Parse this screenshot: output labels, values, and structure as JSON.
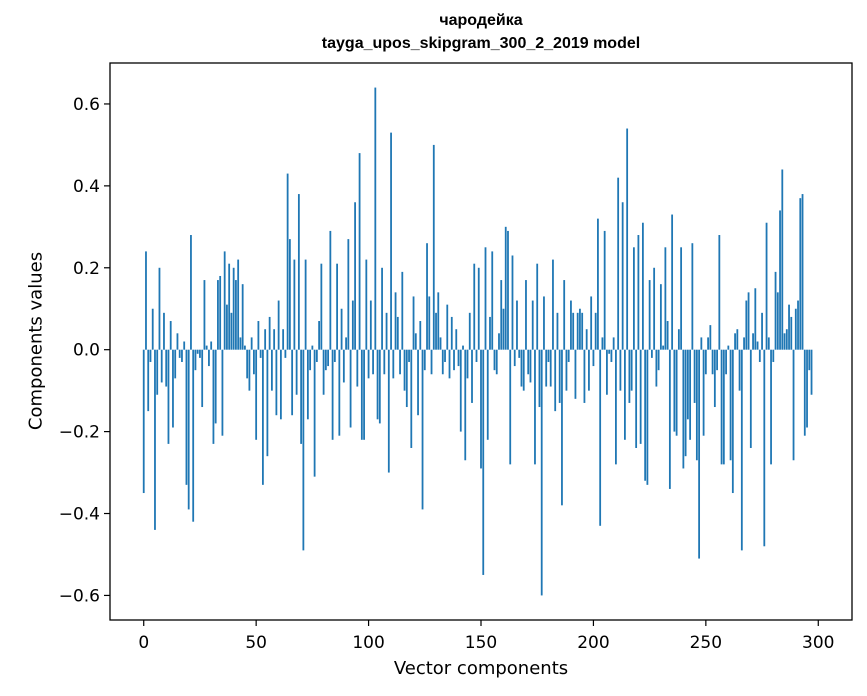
{
  "chart_data": {
    "type": "bar",
    "title": "чародейка",
    "subtitle": "tayga_upos_skipgram_300_2_2019 model",
    "xlabel": "Vector components",
    "ylabel": "Components values",
    "xlim": [
      -15,
      315
    ],
    "ylim": [
      -0.66,
      0.7
    ],
    "xticks": [
      0,
      50,
      100,
      150,
      200,
      250,
      300
    ],
    "xtick_labels": [
      "0",
      "50",
      "100",
      "150",
      "200",
      "250",
      "300"
    ],
    "yticks": [
      -0.6,
      -0.4,
      -0.2,
      0.0,
      0.2,
      0.4,
      0.6
    ],
    "ytick_labels": [
      "−0.6",
      "−0.4",
      "−0.2",
      "0.0",
      "0.2",
      "0.4",
      "0.6"
    ],
    "grid": false,
    "color": "#1f77b4",
    "values": [
      -0.35,
      0.24,
      -0.15,
      -0.03,
      0.1,
      -0.44,
      -0.11,
      0.2,
      -0.08,
      0.09,
      -0.09,
      -0.23,
      0.07,
      -0.19,
      -0.07,
      0.04,
      -0.02,
      -0.03,
      0.02,
      -0.33,
      -0.39,
      0.28,
      -0.42,
      -0.05,
      -0.01,
      -0.02,
      -0.14,
      0.17,
      0.01,
      -0.04,
      0.02,
      -0.23,
      -0.18,
      0.17,
      0.18,
      -0.21,
      0.24,
      0.11,
      0.21,
      0.09,
      0.2,
      0.17,
      0.22,
      0.03,
      0.16,
      0.01,
      -0.07,
      -0.1,
      0.03,
      -0.06,
      -0.22,
      0.07,
      -0.02,
      -0.33,
      0.05,
      -0.26,
      0.08,
      -0.1,
      0.05,
      -0.16,
      0.12,
      -0.17,
      0.05,
      -0.02,
      0.43,
      0.27,
      -0.16,
      0.22,
      -0.11,
      0.38,
      -0.23,
      -0.49,
      0.22,
      -0.17,
      -0.05,
      0.01,
      -0.31,
      -0.03,
      0.07,
      0.21,
      -0.11,
      -0.05,
      -0.04,
      0.29,
      -0.22,
      -0.03,
      0.21,
      -0.21,
      0.1,
      -0.08,
      0.03,
      0.27,
      -0.19,
      0.12,
      0.36,
      -0.09,
      0.48,
      -0.22,
      -0.22,
      0.22,
      -0.07,
      0.12,
      -0.06,
      0.64,
      -0.17,
      -0.18,
      0.2,
      -0.06,
      0.09,
      -0.3,
      0.53,
      -0.07,
      0.14,
      0.08,
      -0.06,
      0.19,
      -0.1,
      -0.14,
      -0.03,
      -0.24,
      0.13,
      0.04,
      -0.16,
      0.07,
      -0.39,
      -0.05,
      0.26,
      0.13,
      -0.06,
      0.5,
      0.09,
      0.14,
      0.03,
      -0.06,
      -0.03,
      0.11,
      -0.07,
      0.08,
      -0.05,
      0.05,
      -0.04,
      -0.2,
      0.01,
      -0.27,
      -0.07,
      0.09,
      -0.13,
      0.21,
      -0.03,
      0.2,
      -0.29,
      -0.55,
      0.25,
      -0.22,
      0.08,
      0.24,
      -0.05,
      -0.06,
      0.04,
      0.17,
      0.1,
      0.3,
      0.29,
      -0.28,
      0.23,
      -0.04,
      0.12,
      -0.02,
      -0.09,
      -0.1,
      0.17,
      -0.06,
      -0.08,
      0.12,
      -0.28,
      0.21,
      -0.14,
      -0.6,
      0.13,
      -0.09,
      -0.03,
      -0.09,
      0.22,
      -0.15,
      0.09,
      -0.13,
      -0.38,
      0.17,
      -0.1,
      -0.03,
      0.12,
      0.09,
      -0.12,
      0.09,
      0.1,
      0.09,
      -0.13,
      0.05,
      -0.1,
      0.13,
      -0.04,
      0.09,
      0.32,
      -0.43,
      0.03,
      0.29,
      -0.11,
      -0.01,
      -0.03,
      0.03,
      -0.28,
      0.42,
      -0.1,
      0.36,
      -0.22,
      0.54,
      -0.13,
      -0.1,
      0.25,
      -0.24,
      0.28,
      -0.23,
      0.31,
      -0.32,
      -0.33,
      0.17,
      -0.02,
      0.2,
      -0.09,
      -0.05,
      0.16,
      0.01,
      0.25,
      0.07,
      -0.34,
      0.33,
      -0.2,
      -0.21,
      0.05,
      0.25,
      -0.29,
      -0.26,
      -0.17,
      -0.22,
      0.26,
      -0.13,
      -0.27,
      -0.51,
      0.03,
      -0.21,
      -0.06,
      0.03,
      0.06,
      -0.06,
      -0.14,
      -0.05,
      0.28,
      -0.28,
      -0.28,
      -0.06,
      0.01,
      -0.27,
      -0.35,
      0.04,
      0.05,
      -0.1,
      -0.49,
      0.03,
      0.12,
      0.14,
      -0.24,
      0.04,
      0.15,
      0.02,
      -0.03,
      0.09,
      -0.48,
      0.31,
      0.03,
      -0.28,
      -0.03,
      0.19,
      0.14,
      0.34,
      0.44,
      0.04,
      0.05,
      0.11,
      0.08,
      -0.27,
      0.1,
      0.12,
      0.37,
      0.38,
      -0.21,
      -0.19,
      -0.05,
      -0.11
    ]
  }
}
